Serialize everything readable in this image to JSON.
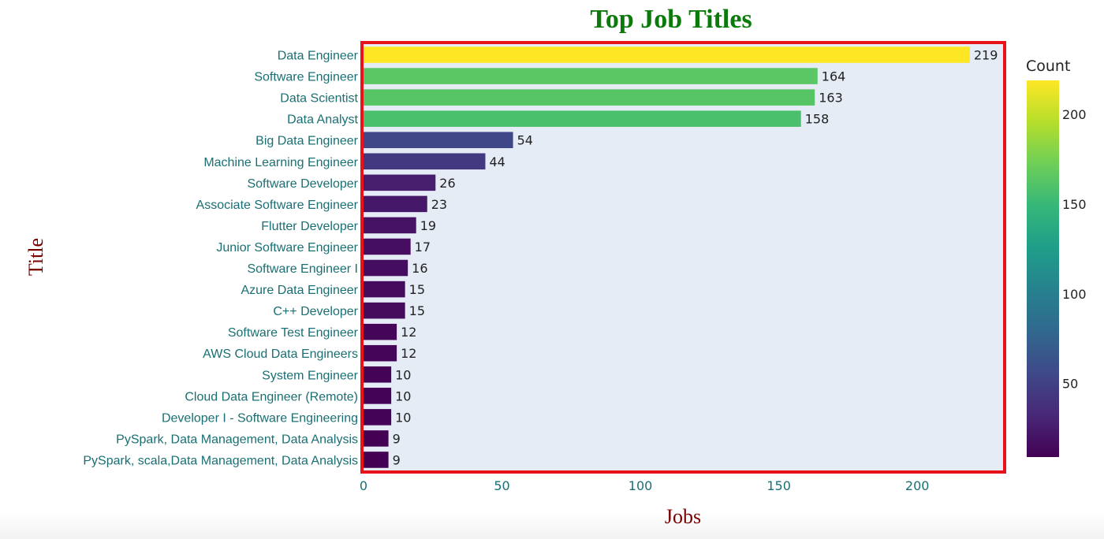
{
  "chart_data": {
    "type": "bar",
    "orientation": "horizontal",
    "title": "Top Job Titles",
    "xlabel": "Jobs",
    "ylabel": "Title",
    "xlim": [
      0,
      231
    ],
    "xticks": [
      0,
      50,
      100,
      150,
      200
    ],
    "categories": [
      "Data Engineer",
      "Software Engineer",
      "Data Scientist",
      "Data Analyst",
      "Big Data Engineer",
      "Machine Learning Engineer",
      "Software Developer",
      "Associate Software Engineer",
      "Flutter Developer",
      "Junior Software Engineer",
      "Software Engineer I",
      "Azure Data Engineer",
      "C++ Developer",
      "Software Test Engineer",
      "AWS Cloud Data Engineers",
      "System Engineer",
      "Cloud Data Engineer (Remote)",
      "Developer I - Software Engineering",
      "PySpark, Data Management, Data Analysis",
      "PySpark, scala,Data Management, Data Analysis"
    ],
    "values": [
      219,
      164,
      163,
      158,
      54,
      44,
      26,
      23,
      19,
      17,
      16,
      15,
      15,
      12,
      12,
      10,
      10,
      10,
      9,
      9
    ],
    "colorscale": "Viridis",
    "colorbar": {
      "title": "Count",
      "range": [
        9,
        219
      ],
      "ticks": [
        50,
        100,
        150,
        200
      ]
    },
    "plot_background": "#e5ecf6",
    "highlight_border_color": "#e8121a",
    "grid": false,
    "legend": "none"
  }
}
